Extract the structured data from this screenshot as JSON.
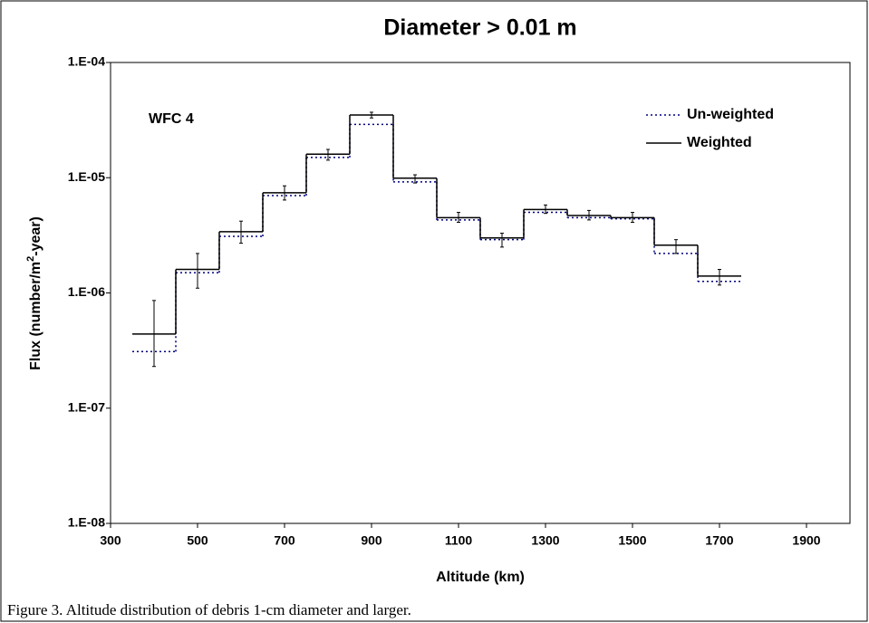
{
  "chart_data": {
    "type": "step",
    "title": "Diameter > 0.01 m",
    "xlabel": "Altitude (km)",
    "ylabel": [
      "Flux (number/m",
      "2",
      "-year)"
    ],
    "annotation": "WFC 4",
    "caption": "Figure 3. Altitude distribution of debris 1-cm diameter and larger.",
    "bins": [
      350,
      450,
      550,
      650,
      750,
      850,
      950,
      1050,
      1150,
      1250,
      1350,
      1450,
      1550,
      1650,
      1750
    ],
    "x": [
      400,
      500,
      600,
      700,
      800,
      900,
      1000,
      1100,
      1200,
      1300,
      1400,
      1500,
      1600,
      1700
    ],
    "series": [
      {
        "name": "Un-weighted",
        "color": "#000080",
        "style": "dotted",
        "values": [
          3.1e-07,
          1.5e-06,
          3.1e-06,
          7e-06,
          1.5e-05,
          2.9e-05,
          9.2e-06,
          4.3e-06,
          2.9e-06,
          5e-06,
          4.5e-06,
          4.4e-06,
          2.2e-06,
          1.26e-06
        ]
      },
      {
        "name": "Weighted",
        "color": "#000000",
        "style": "solid",
        "values": [
          4.4e-07,
          1.6e-06,
          3.4e-06,
          7.4e-06,
          1.6e-05,
          3.5e-05,
          9.9e-06,
          4.5e-06,
          3e-06,
          5.3e-06,
          4.7e-06,
          4.5e-06,
          2.6e-06,
          1.4e-06
        ],
        "lower": [
          2.3e-07,
          1.1e-06,
          2.7e-06,
          6.4e-06,
          1.42e-05,
          3.3e-05,
          9e-06,
          4.1e-06,
          2.5e-06,
          4.9e-06,
          4.3e-06,
          4.1e-06,
          2.2e-06,
          1.17e-06
        ],
        "upper": [
          8.6e-07,
          2.2e-06,
          4.2e-06,
          8.5e-06,
          1.76e-05,
          3.7e-05,
          1.06e-05,
          5e-06,
          3.3e-06,
          5.8e-06,
          5.2e-06,
          5e-06,
          2.9e-06,
          1.6e-06
        ]
      }
    ],
    "xlim": [
      300,
      2000
    ],
    "xticks": [
      300,
      500,
      700,
      900,
      1100,
      1300,
      1500,
      1700,
      1900
    ],
    "ylim": [
      1e-08,
      0.0001
    ],
    "ylog": true,
    "yticks": [
      {
        "value": 1e-08,
        "label": "1.E-08"
      },
      {
        "value": 1e-07,
        "label": "1.E-07"
      },
      {
        "value": 1e-06,
        "label": "1.E-06"
      },
      {
        "value": 1e-05,
        "label": "1.E-05"
      },
      {
        "value": 0.0001,
        "label": "1.E-04"
      }
    ],
    "legend": "top-right",
    "grid": false
  }
}
